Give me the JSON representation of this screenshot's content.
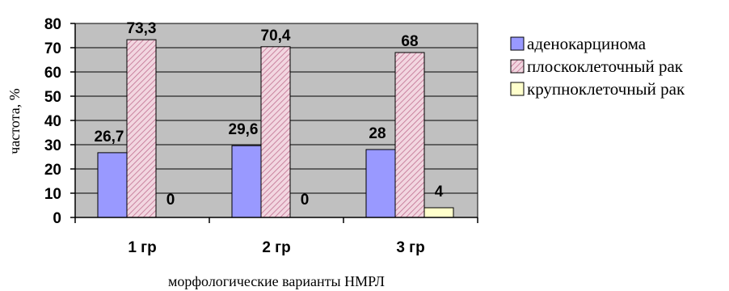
{
  "chart_data": {
    "type": "bar",
    "categories": [
      "1 гр",
      "2 гр",
      "3 гр"
    ],
    "series": [
      {
        "name": "аденокарцинома",
        "values": [
          26.7,
          29.6,
          28
        ],
        "labels": [
          "26,7",
          "29,6",
          "28"
        ],
        "color": "#9999ff",
        "pattern": "solid"
      },
      {
        "name": "плоскоклеточный рак",
        "values": [
          73.3,
          70.4,
          68
        ],
        "labels": [
          "73,3",
          "70,4",
          "68"
        ],
        "color": "#f2d6e0",
        "pattern": "hatch",
        "pattern_color": "#c07090"
      },
      {
        "name": "крупноклеточный рак",
        "values": [
          0,
          0,
          4
        ],
        "labels": [
          "0",
          "0",
          "4"
        ],
        "color": "#ffffcc",
        "pattern": "solid"
      }
    ],
    "title": "",
    "xlabel": "морфологические варианты НМРЛ",
    "ylabel": "частота, %",
    "ylim": [
      0,
      80
    ],
    "yticks": [
      0,
      10,
      20,
      30,
      40,
      50,
      60,
      70,
      80
    ],
    "grid": true,
    "plot_background": "#c0c0c0",
    "legend_position": "right"
  }
}
